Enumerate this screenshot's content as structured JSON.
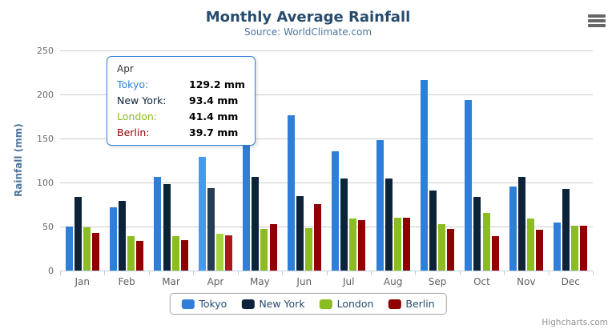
{
  "header": {
    "title": "Monthly Average Rainfall",
    "subtitle": "Source: WorldClimate.com"
  },
  "chart_data": {
    "type": "bar",
    "categories": [
      "Jan",
      "Feb",
      "Mar",
      "Apr",
      "May",
      "Jun",
      "Jul",
      "Aug",
      "Sep",
      "Oct",
      "Nov",
      "Dec"
    ],
    "series": [
      {
        "name": "Tokyo",
        "color": "#2f7ed8",
        "hover_color": "#4897f1",
        "values": [
          49.9,
          71.5,
          106.4,
          129.2,
          144.0,
          176.0,
          135.6,
          148.5,
          216.4,
          194.1,
          95.6,
          54.4
        ]
      },
      {
        "name": "New York",
        "color": "#0d233a",
        "hover_color": "#263c53",
        "values": [
          83.6,
          78.8,
          98.5,
          93.4,
          106.0,
          84.5,
          105.0,
          104.3,
          91.2,
          83.5,
          106.6,
          92.3
        ]
      },
      {
        "name": "London",
        "color": "#8bbc21",
        "hover_color": "#a4d53a",
        "values": [
          48.9,
          38.8,
          39.3,
          41.4,
          47.0,
          48.3,
          59.0,
          59.6,
          52.4,
          65.2,
          59.3,
          51.2
        ]
      },
      {
        "name": "Berlin",
        "color": "#910000",
        "hover_color": "#aa1919",
        "values": [
          42.4,
          33.2,
          34.5,
          39.7,
          52.6,
          75.5,
          57.4,
          60.4,
          47.6,
          39.1,
          46.8,
          51.1
        ]
      }
    ],
    "title": "Monthly Average Rainfall",
    "xlabel": "",
    "ylabel": "Rainfall (mm)",
    "ylim": [
      0,
      250
    ],
    "yticks": [
      0,
      50,
      100,
      150,
      200,
      250
    ],
    "grid": true,
    "legend_position": "bottom"
  },
  "hover": {
    "category": "Apr",
    "category_index": 3
  },
  "tooltip": {
    "category": "Apr",
    "border_color": "#2f7ed8",
    "rows": [
      {
        "label": "Tokyo:",
        "value": "129.2 mm",
        "color": "#2f7ed8"
      },
      {
        "label": "New York:",
        "value": "93.4 mm",
        "color": "#0d233a"
      },
      {
        "label": "London:",
        "value": "41.4 mm",
        "color": "#8bbc21"
      },
      {
        "label": "Berlin:",
        "value": "39.7 mm",
        "color": "#910000"
      }
    ]
  },
  "footer": {
    "credits": "Highcharts.com"
  },
  "colors": {
    "background": "#ffffff",
    "title_text": "#274b6d",
    "subtitle_text": "#4d759e",
    "axis_title_text": "#4d759e",
    "axis_label_text": "#666666",
    "grid_line": "#cccccc",
    "axis_line": "#c0d0e0",
    "legend_text": "#274b6d",
    "legend_border": "#a5a5a5",
    "export_icon": "#666666",
    "credits_text": "#909090"
  }
}
